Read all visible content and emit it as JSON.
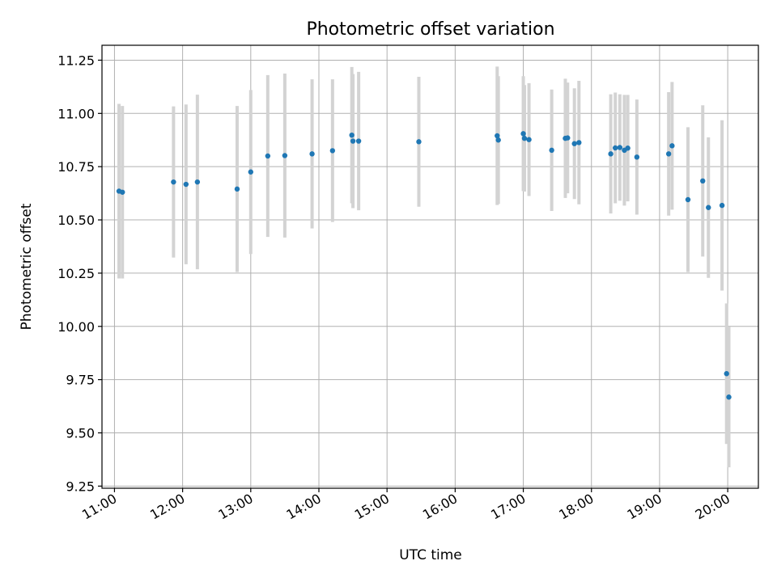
{
  "chart_data": {
    "type": "scatter",
    "title": "Photometric offset variation",
    "xlabel": "UTC time",
    "ylabel": "Photometric offset",
    "xlim": [
      "10:49",
      "20:27"
    ],
    "ylim": [
      9.24,
      11.32
    ],
    "x_ticks": [
      "11:00",
      "12:00",
      "13:00",
      "14:00",
      "15:00",
      "16:00",
      "17:00",
      "18:00",
      "19:00",
      "20:00"
    ],
    "y_ticks": [
      "9.25",
      "9.50",
      "9.75",
      "10.00",
      "10.25",
      "10.50",
      "10.75",
      "11.00",
      "11.25"
    ],
    "grid": true,
    "point_color": "#1f77b4",
    "errorbar_color": "#d3d3d3",
    "series": [
      {
        "x": [
          "11:04",
          "11:07",
          "11:52",
          "12:03",
          "12:13",
          "12:48",
          "13:00",
          "13:15",
          "13:30",
          "13:54",
          "14:12",
          "14:29",
          "14:30",
          "14:35",
          "15:28",
          "16:37",
          "16:38",
          "17:00",
          "17:01",
          "17:05",
          "17:25",
          "17:37",
          "17:39",
          "17:45",
          "17:49",
          "18:17",
          "18:21",
          "18:25",
          "18:29",
          "18:32",
          "18:40",
          "19:08",
          "19:11",
          "19:25",
          "19:38",
          "19:43",
          "19:55",
          "19:59",
          "20:01"
        ],
        "y": [
          10.635,
          10.63,
          10.678,
          10.667,
          10.678,
          10.645,
          10.725,
          10.8,
          10.802,
          10.81,
          10.825,
          10.898,
          10.87,
          10.87,
          10.867,
          10.895,
          10.875,
          10.905,
          10.883,
          10.877,
          10.827,
          10.883,
          10.885,
          10.858,
          10.863,
          10.81,
          10.838,
          10.84,
          10.827,
          10.837,
          10.795,
          10.81,
          10.848,
          10.595,
          10.683,
          10.558,
          10.568,
          9.778,
          9.668
        ],
        "yerr": [
          0.41,
          0.405,
          0.355,
          0.375,
          0.41,
          0.39,
          0.385,
          0.38,
          0.385,
          0.35,
          0.335,
          0.32,
          0.315,
          0.325,
          0.305,
          0.325,
          0.3,
          0.27,
          0.25,
          0.265,
          0.285,
          0.28,
          0.26,
          0.26,
          0.29,
          0.28,
          0.26,
          0.25,
          0.26,
          0.25,
          0.27,
          0.29,
          0.3,
          0.34,
          0.355,
          0.33,
          0.4,
          0.33,
          0.33
        ]
      }
    ]
  }
}
